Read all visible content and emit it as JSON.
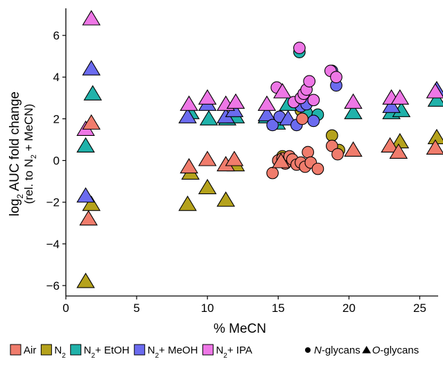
{
  "chart_data": {
    "type": "scatter",
    "xlabel": "% MeCN",
    "ylabel_main": "log",
    "ylabel_sub": "2",
    "ylabel_rest": " AUC fold change",
    "ylabel2_pre": "(rel. to N",
    "ylabel2_sub": "2",
    "ylabel2_post": " + MeCN)",
    "xlim": [
      0,
      26.3
    ],
    "ylim": [
      -6.5,
      7.3
    ],
    "x_ticks": [
      0,
      5,
      10,
      15,
      20,
      25
    ],
    "y_ticks": [
      -6,
      -4,
      -2,
      0,
      2,
      4,
      6
    ],
    "grid": false,
    "legend_position": "bottom",
    "colors": {
      "Air": "#F07C6C",
      "N2": "#B5A21C",
      "N2 + EtOH": "#20B2AA",
      "N2 + MeOH": "#6B6BEF",
      "N2 + IPA": "#EE77E6"
    },
    "legend": {
      "series": [
        {
          "key": "Air",
          "parts": [
            {
              "t": "Air"
            }
          ]
        },
        {
          "key": "N2",
          "parts": [
            {
              "t": "N"
            },
            {
              "t": "2",
              "sub": true
            }
          ]
        },
        {
          "key": "N2 + EtOH",
          "parts": [
            {
              "t": "N"
            },
            {
              "t": "2",
              "sub": true
            },
            {
              "t": "+ EtOH"
            }
          ]
        },
        {
          "key": "N2 + MeOH",
          "parts": [
            {
              "t": "N"
            },
            {
              "t": "2",
              "sub": true
            },
            {
              "t": "+ MeOH"
            }
          ]
        },
        {
          "key": "N2 + IPA",
          "parts": [
            {
              "t": "N"
            },
            {
              "t": "2",
              "sub": true
            },
            {
              "t": "+ IPA"
            }
          ]
        }
      ],
      "shapes": [
        {
          "shape": "circle",
          "parts": [
            {
              "t": "N",
              "i": true
            },
            {
              "t": "-glycans"
            }
          ]
        },
        {
          "shape": "triangle",
          "parts": [
            {
              "t": "O",
              "i": true
            },
            {
              "t": "-glycans"
            }
          ]
        }
      ]
    },
    "series": [
      {
        "key": "Air",
        "points": [
          [
            1.6,
            -2.8,
            "t"
          ],
          [
            1.8,
            1.8,
            "t"
          ],
          [
            8.7,
            -0.3,
            "t"
          ],
          [
            10.0,
            0.05,
            "t"
          ],
          [
            11.3,
            -0.2,
            "t"
          ],
          [
            11.9,
            0.05,
            "t"
          ],
          [
            14.6,
            -0.6,
            "c"
          ],
          [
            15.0,
            0.0,
            "c"
          ],
          [
            15.3,
            0.1,
            "c"
          ],
          [
            15.5,
            -0.15,
            "c"
          ],
          [
            15.8,
            0.2,
            "c"
          ],
          [
            16.0,
            0.05,
            "c"
          ],
          [
            16.3,
            -0.2,
            "c"
          ],
          [
            16.6,
            -0.1,
            "c"
          ],
          [
            16.7,
            2.0,
            "c"
          ],
          [
            16.9,
            -0.3,
            "c"
          ],
          [
            17.1,
            0.4,
            "c"
          ],
          [
            17.3,
            -0.1,
            "c"
          ],
          [
            17.8,
            -0.4,
            "c"
          ],
          [
            18.8,
            0.7,
            "c"
          ],
          [
            19.2,
            0.3,
            "c"
          ],
          [
            15.2,
            -0.05,
            "t"
          ],
          [
            20.3,
            0.5,
            "t"
          ],
          [
            22.9,
            0.7,
            "t"
          ],
          [
            23.5,
            0.4,
            "t"
          ],
          [
            26.1,
            0.6,
            "t"
          ]
        ]
      },
      {
        "key": "N2",
        "points": [
          [
            1.4,
            -5.8,
            "t"
          ],
          [
            1.8,
            -2.1,
            "t"
          ],
          [
            8.6,
            -2.1,
            "t"
          ],
          [
            8.8,
            -0.6,
            "t"
          ],
          [
            10.0,
            -1.3,
            "t"
          ],
          [
            11.3,
            -1.9,
            "t"
          ],
          [
            12.0,
            -0.2,
            "t"
          ],
          [
            15.3,
            0.2,
            "c"
          ],
          [
            16.6,
            2.4,
            "c"
          ],
          [
            18.8,
            1.2,
            "c"
          ],
          [
            19.3,
            0.5,
            "c"
          ],
          [
            23.6,
            0.9,
            "t"
          ],
          [
            26.2,
            1.1,
            "t"
          ]
        ]
      },
      {
        "key": "N2 + EtOH",
        "points": [
          [
            1.4,
            0.7,
            "t"
          ],
          [
            1.9,
            3.2,
            "t"
          ],
          [
            8.8,
            2.3,
            "t"
          ],
          [
            10.1,
            2.0,
            "t"
          ],
          [
            11.4,
            2.0,
            "t"
          ],
          [
            12.0,
            2.1,
            "t"
          ],
          [
            14.2,
            2.1,
            "t"
          ],
          [
            14.9,
            1.8,
            "t"
          ],
          [
            15.7,
            2.7,
            "t"
          ],
          [
            16.5,
            5.2,
            "c"
          ],
          [
            17.0,
            2.3,
            "c"
          ],
          [
            17.8,
            2.2,
            "c"
          ],
          [
            20.3,
            2.3,
            "t"
          ],
          [
            23.0,
            2.3,
            "t"
          ],
          [
            23.7,
            2.4,
            "t"
          ],
          [
            26.2,
            2.9,
            "t"
          ]
        ]
      },
      {
        "key": "N2 + MeOH",
        "points": [
          [
            1.4,
            -1.7,
            "t"
          ],
          [
            1.8,
            4.4,
            "t"
          ],
          [
            8.6,
            2.1,
            "t"
          ],
          [
            10.0,
            2.7,
            "t"
          ],
          [
            11.3,
            2.1,
            "t"
          ],
          [
            11.9,
            2.4,
            "t"
          ],
          [
            14.2,
            2.2,
            "t"
          ],
          [
            14.6,
            1.7,
            "c"
          ],
          [
            15.1,
            2.1,
            "c"
          ],
          [
            15.7,
            2.0,
            "t"
          ],
          [
            16.3,
            1.7,
            "c"
          ],
          [
            16.6,
            2.6,
            "c"
          ],
          [
            17.0,
            2.7,
            "c"
          ],
          [
            17.5,
            1.9,
            "c"
          ],
          [
            18.8,
            4.3,
            "c"
          ],
          [
            19.1,
            3.6,
            "c"
          ],
          [
            23.0,
            2.6,
            "t"
          ],
          [
            26.2,
            3.4,
            "t"
          ]
        ]
      },
      {
        "key": "N2 + IPA",
        "points": [
          [
            1.4,
            1.5,
            "t"
          ],
          [
            1.8,
            6.8,
            "t"
          ],
          [
            8.7,
            2.7,
            "t"
          ],
          [
            10.0,
            3.0,
            "t"
          ],
          [
            11.3,
            2.7,
            "t"
          ],
          [
            12.0,
            2.8,
            "t"
          ],
          [
            14.2,
            2.7,
            "t"
          ],
          [
            14.9,
            3.5,
            "c"
          ],
          [
            15.3,
            3.3,
            "t"
          ],
          [
            16.1,
            2.8,
            "c"
          ],
          [
            16.5,
            5.4,
            "c"
          ],
          [
            16.6,
            3.0,
            "c"
          ],
          [
            16.8,
            3.2,
            "c"
          ],
          [
            17.0,
            3.4,
            "c"
          ],
          [
            17.2,
            3.8,
            "c"
          ],
          [
            17.5,
            2.9,
            "c"
          ],
          [
            18.7,
            4.3,
            "c"
          ],
          [
            19.1,
            4.0,
            "c"
          ],
          [
            20.3,
            2.8,
            "t"
          ],
          [
            23.0,
            3.0,
            "t"
          ],
          [
            23.6,
            3.0,
            "t"
          ],
          [
            26.1,
            3.3,
            "t"
          ]
        ]
      }
    ]
  }
}
